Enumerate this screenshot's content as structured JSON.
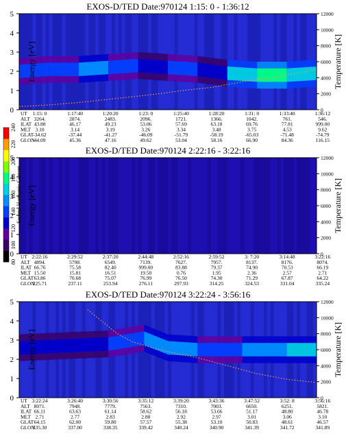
{
  "chart_data": [
    {
      "type": "heatmap",
      "title": "EXOS-D/TED   Date:970124  1:15: 0 - 1:36:12",
      "ylabel": "Energy [eV]",
      "y2label": "Temperature [K]",
      "ylim": [
        0,
        5
      ],
      "y2lim": [
        0,
        12000
      ],
      "yticks": [
        "0",
        "1",
        "2",
        "3",
        "4",
        "5"
      ],
      "y2ticks": [
        "0",
        "2000",
        "4000",
        "6000",
        "8000",
        "10000",
        "12000"
      ],
      "ephemeris": {
        "rows": [
          "UT",
          "ALT",
          "ILAT",
          "MLT",
          "GLAT",
          "GLON"
        ],
        "columns": [
          [
            "1:15: 0",
            "3264.",
            "43.88",
            "3.10",
            "-34.62",
            "44.09"
          ],
          [
            "1:17:40",
            "2874.",
            "46.17",
            "3.14",
            "-37.44",
            "45.36"
          ],
          [
            "1:20:20",
            "2483.",
            "49.23",
            "3.19",
            "-41.27",
            "47.16"
          ],
          [
            "1:23: 0",
            "2096.",
            "53.06",
            "3.26",
            "-46.09",
            "49.62"
          ],
          [
            "1:25:40",
            "1721.",
            "57.69",
            "3.34",
            "-51.79",
            "53.04"
          ],
          [
            "1:28:20",
            "1366.",
            "63.18",
            "3.48",
            "-58.19",
            "58.16"
          ],
          [
            "1:31: 0",
            "1042.",
            "69.76",
            "3.75",
            "-65.03",
            "66.90"
          ],
          [
            "1:33:40",
            "761.",
            "77.81",
            "4.53",
            "-71.48",
            "84.36"
          ],
          [
            "1:36:12",
            "546.",
            "999.00",
            "9.62",
            "-74.79",
            "116.15"
          ]
        ]
      },
      "spectrogram_band": [
        {
          "t": 0.0,
          "e": 2.0,
          "level": 140
        },
        {
          "t": 0.1,
          "e": 2.1,
          "level": 140
        },
        {
          "t": 0.2,
          "e": 2.1,
          "level": 150
        },
        {
          "t": 0.3,
          "e": 2.2,
          "level": 140
        },
        {
          "t": 0.4,
          "e": 2.3,
          "level": 130
        },
        {
          "t": 0.5,
          "e": 2.2,
          "level": 140
        },
        {
          "t": 0.6,
          "e": 2.1,
          "level": 130
        },
        {
          "t": 0.7,
          "e": 1.9,
          "level": 170
        },
        {
          "t": 0.8,
          "e": 1.8,
          "level": 180
        },
        {
          "t": 0.9,
          "e": 1.8,
          "level": 170
        },
        {
          "t": 1.0,
          "e": 1.9,
          "level": 150
        }
      ],
      "temperature_curve": [
        {
          "t": 0.0,
          "T": 400
        },
        {
          "t": 0.1,
          "T": 600
        },
        {
          "t": 0.2,
          "T": 900
        },
        {
          "t": 0.3,
          "T": 1300
        },
        {
          "t": 0.4,
          "T": 1700
        },
        {
          "t": 0.45,
          "T": 1900
        },
        {
          "t": 0.55,
          "T": 2400
        },
        {
          "t": 0.65,
          "T": 2800
        },
        {
          "t": 0.75,
          "T": 3500
        },
        {
          "t": 0.85,
          "T": 4000
        },
        {
          "t": 0.95,
          "T": 4700
        },
        {
          "t": 1.0,
          "T": 5000
        }
      ]
    },
    {
      "type": "heatmap",
      "title": "EXOS-D/TED   Date:970124  2:22:16 - 3:22:16",
      "ylabel": "Energy [eV]",
      "y2label": "Temperature [K]",
      "ylim": [
        0,
        5
      ],
      "y2lim": [
        0,
        12000
      ],
      "yticks": [
        "0",
        "1",
        "2",
        "3",
        "4",
        "5"
      ],
      "y2ticks": [
        "0",
        "2000",
        "4000",
        "6000",
        "8000",
        "10000",
        "12000"
      ],
      "ephemeris": {
        "rows": [
          "UT",
          "ALT",
          "ILAT",
          "MLT",
          "GLAT",
          "GLON"
        ],
        "columns": [
          [
            "2:22:16",
            "4894.",
            "66.76",
            "15.50",
            "63.86",
            "225.71"
          ],
          [
            "2:29:52",
            "5798.",
            "75.58",
            "15.81",
            "70.68",
            "237.11"
          ],
          [
            "2:37:20",
            "6549.",
            "82.40",
            "16.51",
            "75.07",
            "253.94"
          ],
          [
            "2:44:48",
            "7139.",
            "999.00",
            "19.50",
            "76.99",
            "276.11"
          ],
          [
            "2:52:16",
            "7627.",
            "83.88",
            "0.76",
            "76.50",
            "297.93"
          ],
          [
            "2:59:52",
            "7957.",
            "79.37",
            "1.95",
            "74.30",
            "314.25"
          ],
          [
            "3: 7:20",
            "8137.",
            "74.90",
            "2.36",
            "71.29",
            "324.53"
          ],
          [
            "3:14:48",
            "8176.",
            "70.53",
            "2.57",
            "67.87",
            "331.04"
          ],
          [
            "3:22:16",
            "8074.",
            "66.19",
            "2.71",
            "64.22",
            "335.24"
          ]
        ]
      },
      "spectrogram_band": [],
      "temperature_curve": []
    },
    {
      "type": "heatmap",
      "title": "EXOS-D/TED   Date:970124  3:22:24 - 3:56:16",
      "ylabel": "Energy [eV]",
      "y2label": "Temperature [K]",
      "ylim": [
        0,
        5
      ],
      "y2lim": [
        0,
        12000
      ],
      "yticks": [
        "0",
        "1",
        "2",
        "3",
        "4",
        "5"
      ],
      "y2ticks": [
        "0",
        "2000",
        "4000",
        "6000",
        "8000",
        "10000",
        "12000"
      ],
      "ephemeris": {
        "rows": [
          "UT",
          "ALT",
          "ILAT",
          "MLT",
          "GLAT",
          "GLON"
        ],
        "columns": [
          [
            "3:22:24",
            "8071.",
            "66.11",
            "2.71",
            "64.15",
            "335.30"
          ],
          [
            "3:26:40",
            "7948.",
            "63.63",
            "2.77",
            "62.00",
            "337.00"
          ],
          [
            "3:30:56",
            "7779.",
            "61.14",
            "2.83",
            "59.80",
            "338.35"
          ],
          [
            "3:35:12",
            "7563.",
            "58.62",
            "2.88",
            "57.57",
            "339.42"
          ],
          [
            "3:39:20",
            "7310.",
            "56.18",
            "2.92",
            "55.38",
            "340.24"
          ],
          [
            "3:43:36",
            "7003.",
            "53.66",
            "2.97",
            "53.10",
            "340.90"
          ],
          [
            "3:47:52",
            "6650.",
            "51.17",
            "3.01",
            "50.83",
            "341.39"
          ],
          [
            "3:52: 8",
            "6251.",
            "48.80",
            "3.06",
            "48.61",
            "341.72"
          ],
          [
            "3:56:16",
            "5821.",
            "46.78",
            "3.10",
            "46.57",
            "341.89"
          ]
        ]
      },
      "spectrogram_band": [
        {
          "t": 0.0,
          "e": 2.6,
          "level": 120
        },
        {
          "t": 0.15,
          "e": 2.7,
          "level": 130
        },
        {
          "t": 0.3,
          "e": 2.8,
          "level": 140
        },
        {
          "t": 0.42,
          "e": 3.1,
          "level": 150
        },
        {
          "t": 0.5,
          "e": 2.6,
          "level": 150
        },
        {
          "t": 0.6,
          "e": 2.5,
          "level": 140
        },
        {
          "t": 0.75,
          "e": 2.5,
          "level": 150
        },
        {
          "t": 0.9,
          "e": 2.5,
          "level": 160
        },
        {
          "t": 1.0,
          "e": 2.5,
          "level": 150
        }
      ],
      "temperature_curve": [
        {
          "t": 0.23,
          "T": 11000
        },
        {
          "t": 0.28,
          "T": 9500
        },
        {
          "t": 0.33,
          "T": 8000
        },
        {
          "t": 0.38,
          "T": 7000
        },
        {
          "t": 0.45,
          "T": 6200
        },
        {
          "t": 0.52,
          "T": 5600
        },
        {
          "t": 0.6,
          "T": 5000
        },
        {
          "t": 0.7,
          "T": 4000
        },
        {
          "t": 0.8,
          "T": 3000
        },
        {
          "t": 0.9,
          "T": 2300
        },
        {
          "t": 1.0,
          "T": 1900
        }
      ]
    }
  ],
  "colorbar": {
    "label": "Second Harmonic Current",
    "ticks": [
      "80",
      "100",
      "120",
      "140",
      "160",
      "180",
      "200",
      "220",
      "240"
    ],
    "colors": [
      "#000000",
      "#3a0066",
      "#6000a0",
      "#0000cc",
      "#0040ff",
      "#0090ff",
      "#00d0e0",
      "#00ff80",
      "#80ff00",
      "#ffff00",
      "#ffa000",
      "#ff0000"
    ]
  }
}
